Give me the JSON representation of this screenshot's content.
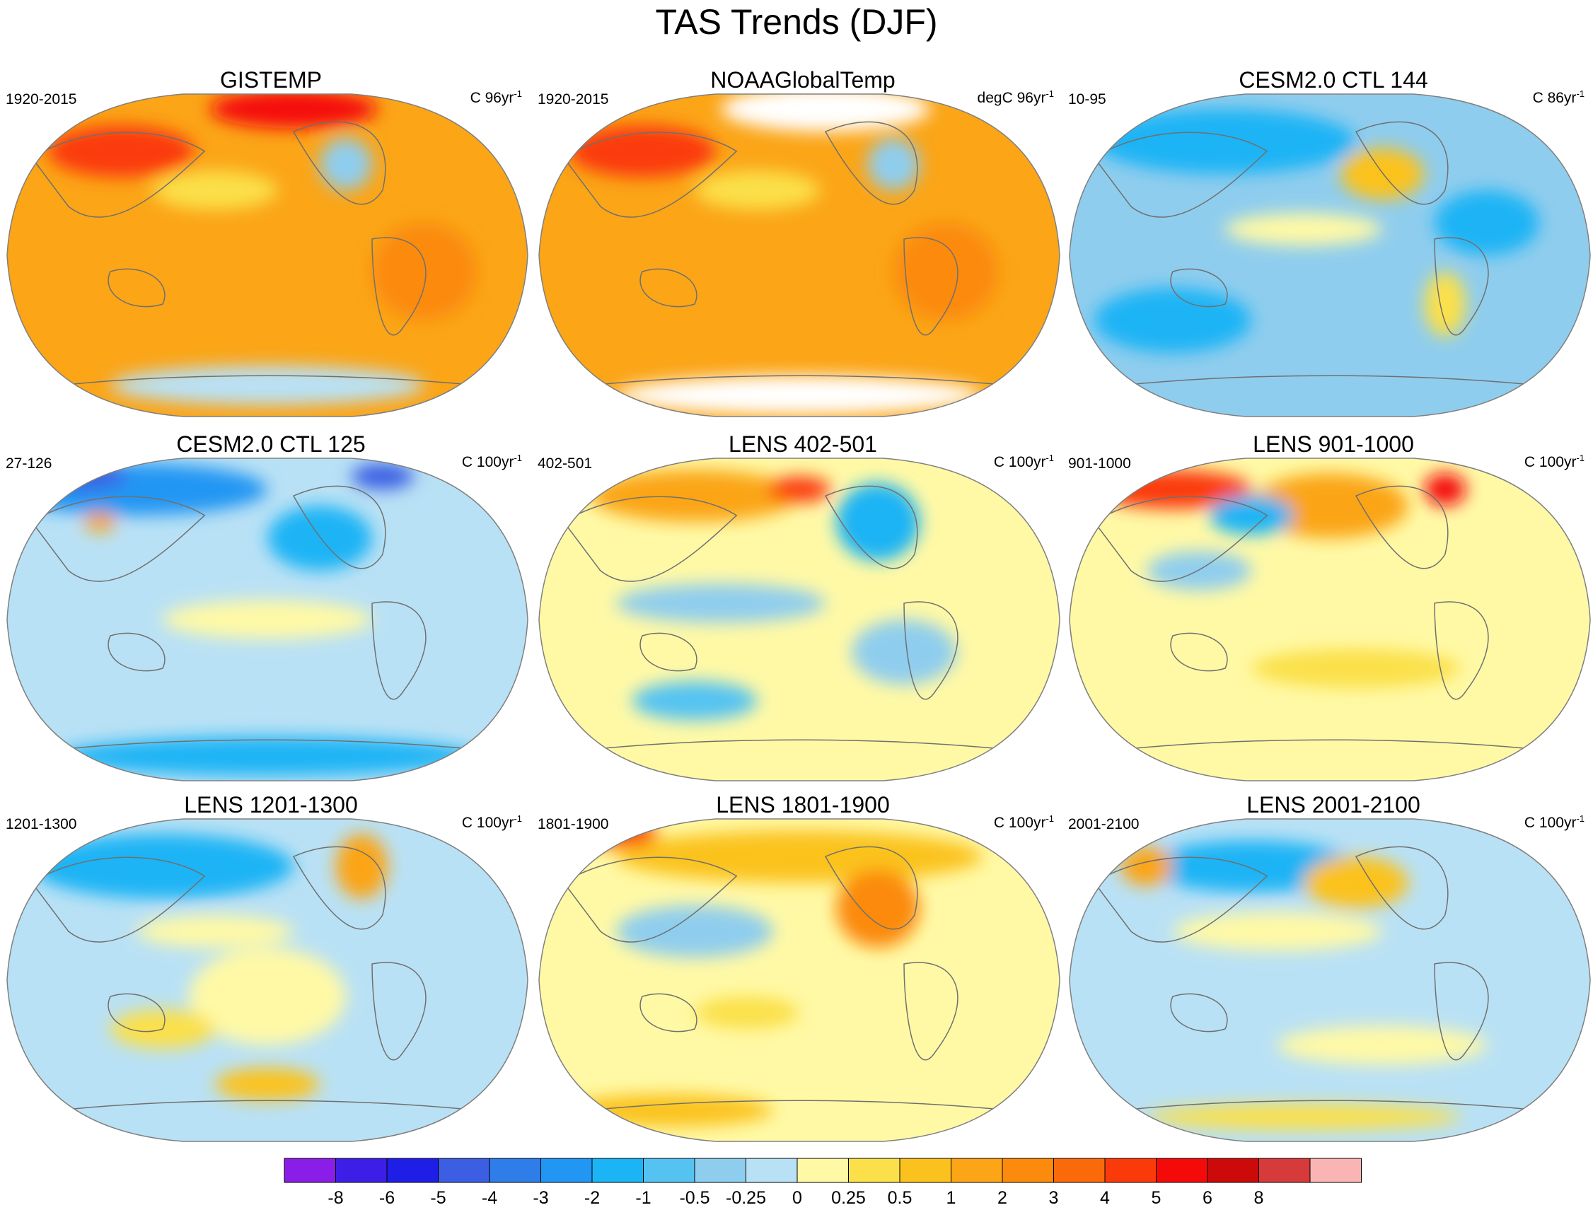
{
  "title": "TAS Trends (DJF)",
  "panels": [
    {
      "title": "GISTEMP",
      "left_label": "1920-2015",
      "units_prefix": "C 96yr",
      "units_exp": "-1",
      "style": "obs"
    },
    {
      "title": "NOAAGlobalTemp",
      "left_label": "1920-2015",
      "units_prefix": "degC 96yr",
      "units_exp": "-1",
      "style": "obs2"
    },
    {
      "title": "CESM2.0 CTL 144",
      "left_label": "10-95",
      "units_prefix": "C 86yr",
      "units_exp": "-1",
      "style": "cool"
    },
    {
      "title": "CESM2.0 CTL 125",
      "left_label": "27-126",
      "units_prefix": "C 100yr",
      "units_exp": "-1",
      "style": "cool2"
    },
    {
      "title": "LENS 402-501",
      "left_label": "402-501",
      "units_prefix": "C 100yr",
      "units_exp": "-1",
      "style": "mix"
    },
    {
      "title": "LENS 901-1000",
      "left_label": "901-1000",
      "units_prefix": "C 100yr",
      "units_exp": "-1",
      "style": "mixwarm"
    },
    {
      "title": "LENS 1201-1300",
      "left_label": "1201-1300",
      "units_prefix": "C 100yr",
      "units_exp": "-1",
      "style": "cool3"
    },
    {
      "title": "LENS 1801-1900",
      "left_label": "1801-1900",
      "units_prefix": "C 100yr",
      "units_exp": "-1",
      "style": "mixwarm2"
    },
    {
      "title": "LENS 2001-2100",
      "left_label": "2001-2100",
      "units_prefix": "C 100yr",
      "units_exp": "-1",
      "style": "mix2"
    }
  ],
  "colorbar": {
    "colors": [
      "#8b1de8",
      "#3c1ee6",
      "#1e1ee6",
      "#3b5ee3",
      "#2f7de8",
      "#2196f3",
      "#1bb4f5",
      "#55c3f2",
      "#8fcdee",
      "#b9e1f5",
      "#fff9a6",
      "#fbe04a",
      "#fbc21f",
      "#fba517",
      "#fb8a0d",
      "#fb6a0a",
      "#fb3a0a",
      "#f50a0a",
      "#cc0a0a",
      "#d63a3a",
      "#fbb4b4"
    ],
    "labels": [
      "-8",
      "-6",
      "-5",
      "-4",
      "-3",
      "-2",
      "-1",
      "-0.5",
      "-0.25",
      "0",
      "0.25",
      "0.5",
      "1",
      "2",
      "3",
      "4",
      "5",
      "6",
      "8"
    ]
  }
}
